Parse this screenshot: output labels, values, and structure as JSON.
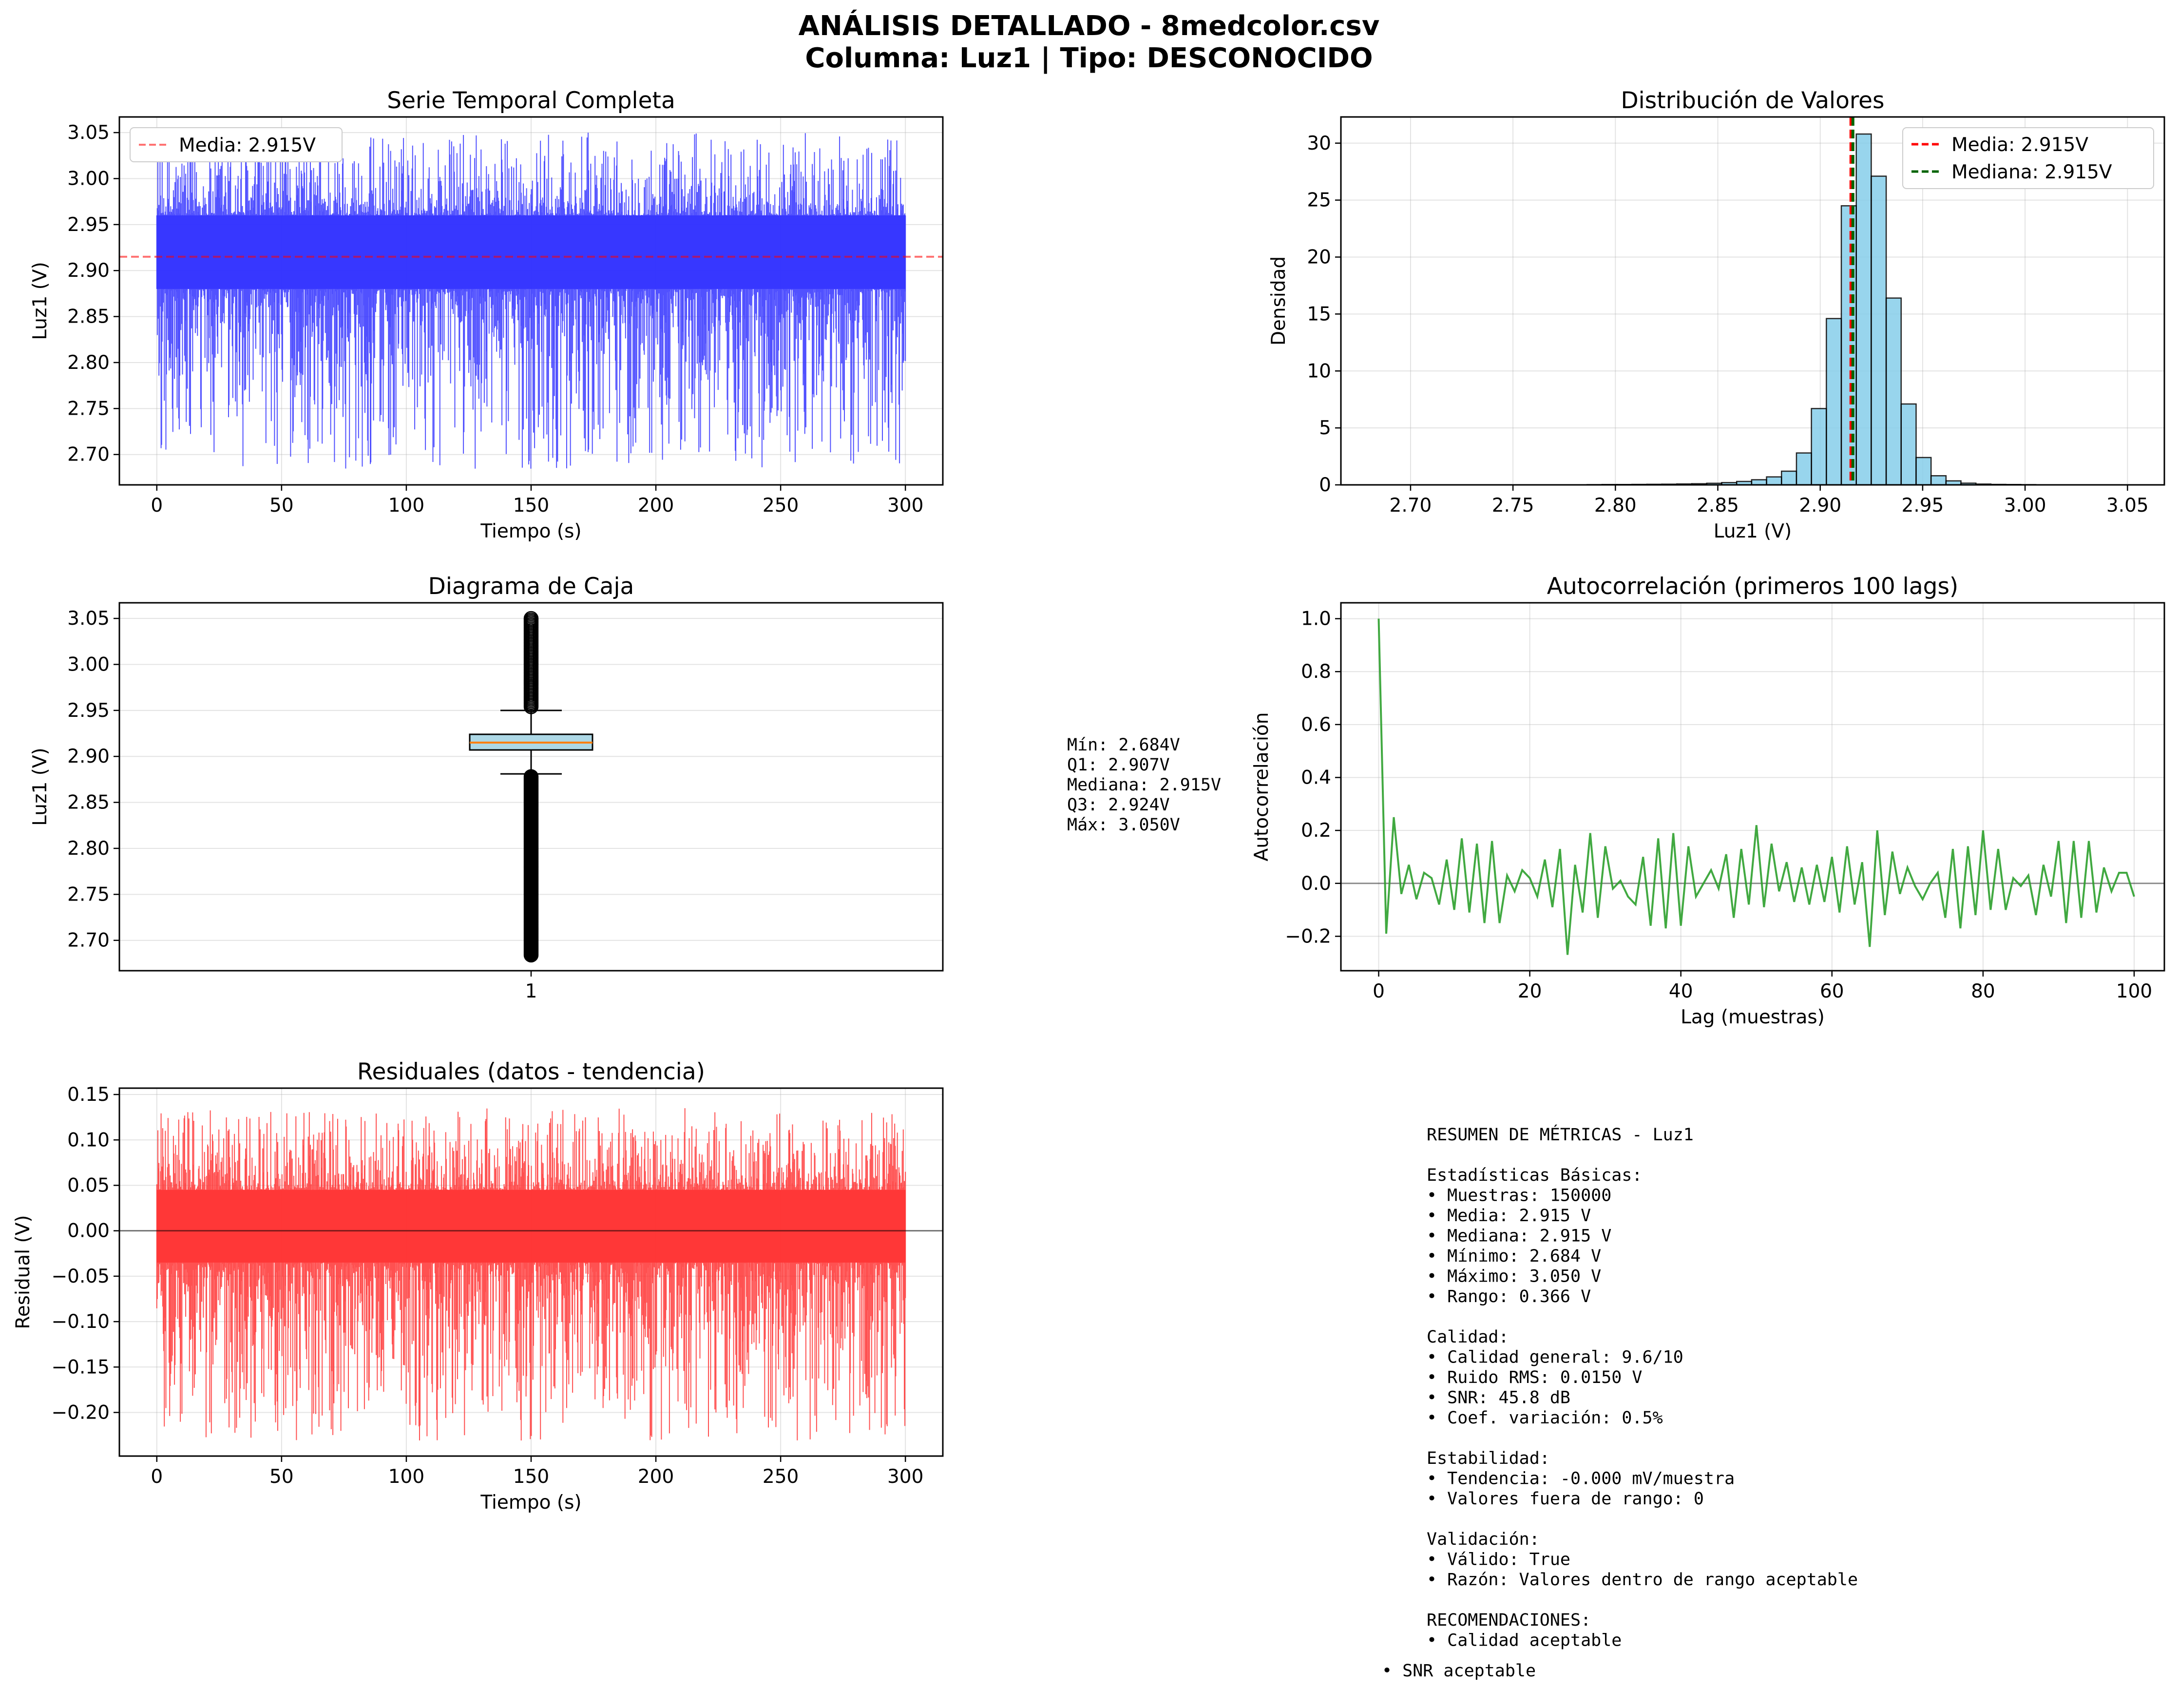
{
  "figure": {
    "title_line1": "ANÁLISIS DETALLADO - 8medcolor.csv",
    "title_line2": "Columna: Luz1 | Tipo: DESCONOCIDO"
  },
  "colors": {
    "time_series": "#3333ff",
    "mean_line": "#ff0000",
    "median_line": "#006400",
    "hist_fill": "#87ceeb",
    "box_fill": "#add8e6",
    "box_median": "#ff7f0e",
    "autocorr": "#2ca02c",
    "residual": "#ff3333"
  },
  "chart_data": [
    {
      "id": "serie",
      "type": "line",
      "title": "Serie Temporal Completa",
      "xlabel": "Tiempo (s)",
      "ylabel": "Luz1 (V)",
      "xlim": [
        -15,
        315
      ],
      "ylim": [
        2.667,
        3.067
      ],
      "xticks": [
        "0",
        "50",
        "100",
        "150",
        "200",
        "250",
        "300"
      ],
      "xtick_values": [
        0,
        50,
        100,
        150,
        200,
        250,
        300
      ],
      "yticks": [
        "2.70",
        "2.75",
        "2.80",
        "2.85",
        "2.90",
        "2.95",
        "3.00",
        "3.05"
      ],
      "ytick_values": [
        2.7,
        2.75,
        2.8,
        2.85,
        2.9,
        2.95,
        3.0,
        3.05
      ],
      "x_range": [
        0,
        300
      ],
      "mean": 2.915,
      "band": [
        2.88,
        2.96
      ],
      "min": 2.684,
      "max": 3.05,
      "samples": 150000,
      "legend": [
        "Media: 2.915V"
      ],
      "legend_loc": "upper left",
      "grid": true
    },
    {
      "id": "hist",
      "type": "bar",
      "title": "Distribución de Valores",
      "xlabel": "Luz1 (V)",
      "ylabel": "Densidad",
      "xlim": [
        2.666,
        3.068
      ],
      "ylim": [
        0,
        32.3
      ],
      "xticks": [
        "2.70",
        "2.75",
        "2.80",
        "2.85",
        "2.90",
        "2.95",
        "3.00",
        "3.05"
      ],
      "xtick_values": [
        2.7,
        2.75,
        2.8,
        2.85,
        2.9,
        2.95,
        3.0,
        3.05
      ],
      "yticks": [
        "0",
        "5",
        "10",
        "15",
        "20",
        "25",
        "30"
      ],
      "ytick_values": [
        0,
        5,
        10,
        15,
        20,
        25,
        30
      ],
      "bin_start": 2.684,
      "bin_width": 0.0073,
      "values": [
        0.01,
        0.01,
        0.01,
        0.01,
        0.01,
        0.01,
        0.01,
        0.01,
        0.01,
        0.01,
        0.01,
        0.01,
        0.01,
        0.01,
        0.02,
        0.03,
        0.03,
        0.04,
        0.05,
        0.06,
        0.08,
        0.1,
        0.14,
        0.2,
        0.3,
        0.45,
        0.7,
        1.2,
        2.8,
        6.7,
        14.6,
        24.5,
        30.8,
        27.1,
        16.4,
        7.1,
        2.4,
        0.8,
        0.35,
        0.15,
        0.07,
        0.04,
        0.03,
        0.02,
        0.01,
        0.01,
        0.01,
        0.01,
        0.01,
        0.01
      ],
      "mean": 2.915,
      "median": 2.915,
      "legend": [
        "Media: 2.915V",
        "Mediana: 2.915V"
      ],
      "legend_loc": "upper right",
      "grid": true
    },
    {
      "id": "box",
      "type": "box",
      "title": "Diagrama de Caja",
      "xlabel": "",
      "ylabel": "Luz1 (V)",
      "ylim": [
        2.667,
        3.067
      ],
      "yticks": [
        "2.70",
        "2.75",
        "2.80",
        "2.85",
        "2.90",
        "2.95",
        "3.00",
        "3.05"
      ],
      "ytick_values": [
        2.7,
        2.75,
        2.8,
        2.85,
        2.9,
        2.95,
        3.0,
        3.05
      ],
      "xticks": [
        "1"
      ],
      "min": 2.684,
      "q1": 2.907,
      "median": 2.915,
      "q3": 2.924,
      "max": 3.05,
      "whisker_low": 2.881,
      "whisker_high": 2.95,
      "stats_text": [
        "Mín: 2.684V",
        "Q1: 2.907V",
        "Mediana: 2.915V",
        "Q3: 2.924V",
        "Máx: 3.050V"
      ],
      "grid": true
    },
    {
      "id": "acf",
      "type": "line",
      "title": "Autocorrelación (primeros 100 lags)",
      "xlabel": "Lag (muestras)",
      "ylabel": "Autocorrelación",
      "xlim": [
        -5,
        104
      ],
      "ylim": [
        -0.33,
        1.06
      ],
      "xticks": [
        "0",
        "20",
        "40",
        "60",
        "80",
        "100"
      ],
      "xtick_values": [
        0,
        20,
        40,
        60,
        80,
        100
      ],
      "yticks": [
        "−0.2",
        "0.0",
        "0.2",
        "0.4",
        "0.6",
        "0.8",
        "1.0"
      ],
      "ytick_values": [
        -0.2,
        0.0,
        0.2,
        0.4,
        0.6,
        0.8,
        1.0
      ],
      "values": [
        1.0,
        -0.19,
        0.25,
        -0.04,
        0.07,
        -0.06,
        0.04,
        0.02,
        -0.08,
        0.09,
        -0.1,
        0.17,
        -0.11,
        0.15,
        -0.15,
        0.16,
        -0.15,
        0.03,
        -0.03,
        0.05,
        0.02,
        -0.05,
        0.09,
        -0.09,
        0.13,
        -0.27,
        0.07,
        -0.11,
        0.19,
        -0.13,
        0.14,
        -0.02,
        0.01,
        -0.05,
        -0.08,
        0.1,
        -0.16,
        0.17,
        -0.17,
        0.19,
        -0.16,
        0.14,
        -0.05,
        0.0,
        0.05,
        -0.02,
        0.11,
        -0.13,
        0.13,
        -0.08,
        0.22,
        -0.09,
        0.15,
        -0.03,
        0.08,
        -0.07,
        0.06,
        -0.08,
        0.07,
        -0.07,
        0.1,
        -0.11,
        0.14,
        -0.08,
        0.08,
        -0.24,
        0.2,
        -0.12,
        0.12,
        -0.04,
        0.06,
        -0.01,
        -0.06,
        0.0,
        0.04,
        -0.13,
        0.13,
        -0.17,
        0.14,
        -0.12,
        0.2,
        -0.1,
        0.13,
        -0.1,
        0.02,
        -0.01,
        0.03,
        -0.12,
        0.07,
        -0.05,
        0.16,
        -0.15,
        0.16,
        -0.13,
        0.16,
        -0.11,
        0.06,
        -0.03,
        0.04,
        0.04,
        -0.05
      ],
      "zero_line": 0.0,
      "grid": true
    },
    {
      "id": "resid",
      "type": "line",
      "title": "Residuales (datos - tendencia)",
      "xlabel": "Tiempo (s)",
      "ylabel": "Residual (V)",
      "xlim": [
        -15,
        315
      ],
      "ylim": [
        -0.248,
        0.157
      ],
      "xticks": [
        "0",
        "50",
        "100",
        "150",
        "200",
        "250",
        "300"
      ],
      "xtick_values": [
        0,
        50,
        100,
        150,
        200,
        250,
        300
      ],
      "yticks": [
        "−0.20",
        "−0.15",
        "−0.10",
        "−0.05",
        "0.00",
        "0.05",
        "0.10",
        "0.15"
      ],
      "ytick_values": [
        -0.2,
        -0.15,
        -0.1,
        -0.05,
        0.0,
        0.05,
        0.1,
        0.15
      ],
      "x_range": [
        0,
        300
      ],
      "band": [
        -0.035,
        0.045
      ],
      "min": -0.231,
      "max": 0.135,
      "zero_line": 0.0,
      "grid": true
    }
  ],
  "summary": {
    "lines": [
      "RESUMEN DE MÉTRICAS - Luz1",
      "",
      "Estadísticas Básicas:",
      "• Muestras: 150000",
      "• Media: 2.915 V",
      "• Mediana: 2.915 V",
      "• Mínimo: 2.684 V",
      "• Máximo: 3.050 V",
      "• Rango: 0.366 V",
      "",
      "Calidad:",
      "• Calidad general: 9.6/10",
      "• Ruido RMS: 0.0150 V",
      "• SNR: 45.8 dB",
      "• Coef. variación: 0.5%",
      "",
      "Estabilidad:",
      "• Tendencia: -0.000 mV/muestra",
      "• Valores fuera de rango: 0",
      "",
      "Validación:",
      "• Válido: True",
      "• Razón: Valores dentro de rango aceptable",
      "",
      "RECOMENDACIONES:",
      "• Calidad aceptable"
    ],
    "last_line": "• SNR aceptable"
  }
}
